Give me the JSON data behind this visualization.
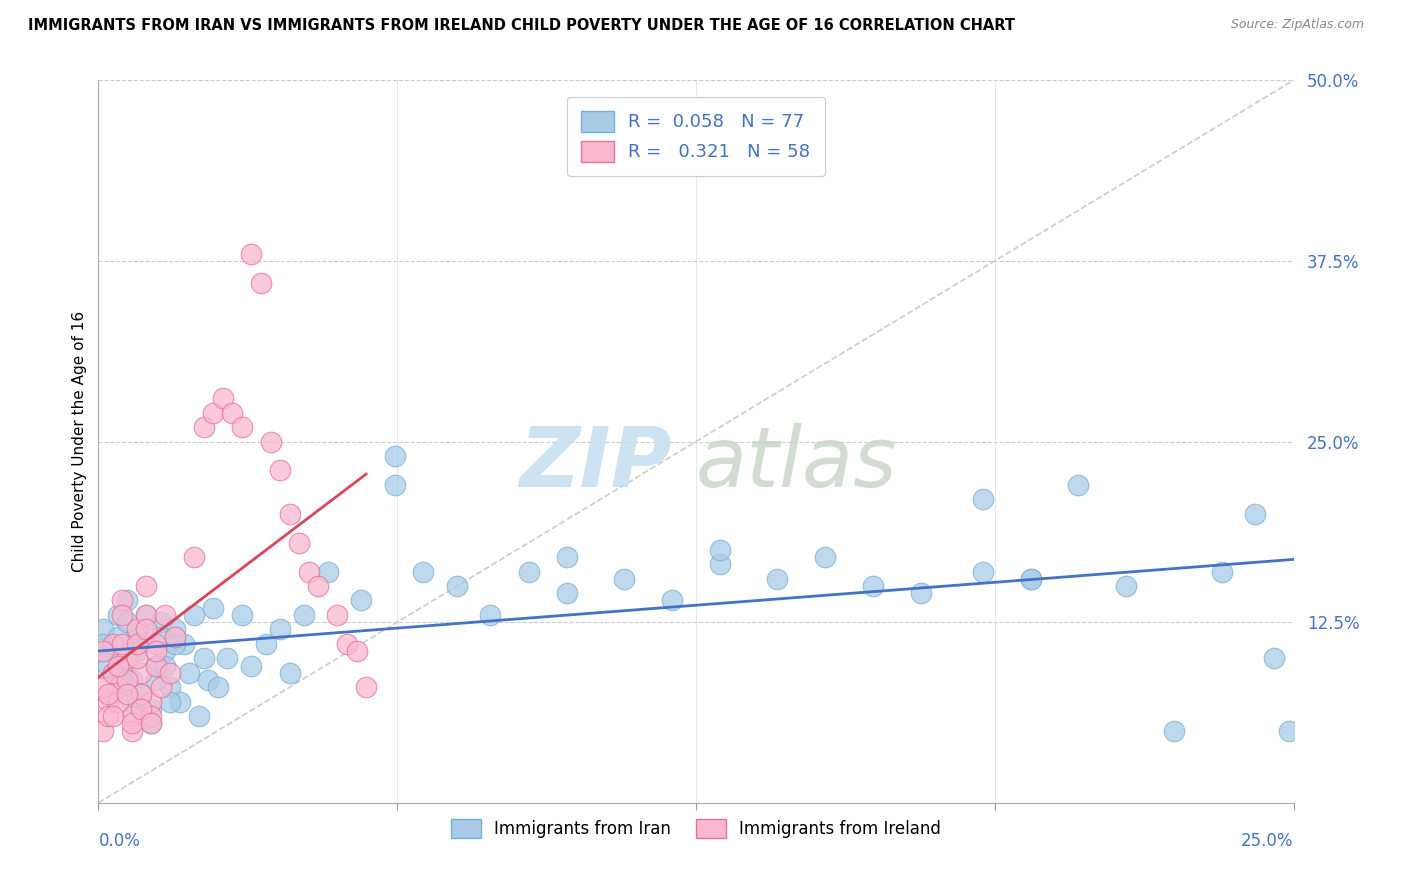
{
  "title": "IMMIGRANTS FROM IRAN VS IMMIGRANTS FROM IRELAND CHILD POVERTY UNDER THE AGE OF 16 CORRELATION CHART",
  "source": "Source: ZipAtlas.com",
  "ylabel": "Child Poverty Under the Age of 16",
  "xlim": [
    0.0,
    0.25
  ],
  "ylim": [
    0.0,
    0.5
  ],
  "iran_color": "#a8cce8",
  "iran_edge": "#7aafd4",
  "ireland_color": "#f9b8d0",
  "ireland_edge": "#e87099",
  "iran_line_color": "#4472c4",
  "ireland_line_color": "#d9465a",
  "ref_line_color": "#cccccc",
  "legend_iran_R": "0.058",
  "legend_iran_N": "77",
  "legend_ireland_R": "0.321",
  "legend_ireland_N": "58",
  "ytick_vals": [
    0.0,
    0.125,
    0.25,
    0.375,
    0.5
  ],
  "ytick_labels": [
    "",
    "12.5%",
    "25.0%",
    "37.5%",
    "50.0%"
  ],
  "iran_pts": [
    [
      0.001,
      0.12
    ],
    [
      0.002,
      0.105
    ],
    [
      0.003,
      0.09
    ],
    [
      0.004,
      0.13
    ],
    [
      0.005,
      0.095
    ],
    [
      0.006,
      0.14
    ],
    [
      0.007,
      0.085
    ],
    [
      0.008,
      0.115
    ],
    [
      0.009,
      0.075
    ],
    [
      0.01,
      0.13
    ],
    [
      0.011,
      0.065
    ],
    [
      0.012,
      0.095
    ],
    [
      0.013,
      0.125
    ],
    [
      0.014,
      0.105
    ],
    [
      0.015,
      0.08
    ],
    [
      0.016,
      0.12
    ],
    [
      0.017,
      0.07
    ],
    [
      0.018,
      0.11
    ],
    [
      0.019,
      0.09
    ],
    [
      0.02,
      0.13
    ],
    [
      0.021,
      0.06
    ],
    [
      0.022,
      0.1
    ],
    [
      0.023,
      0.085
    ],
    [
      0.024,
      0.135
    ],
    [
      0.001,
      0.11
    ],
    [
      0.002,
      0.095
    ],
    [
      0.003,
      0.075
    ],
    [
      0.004,
      0.115
    ],
    [
      0.005,
      0.085
    ],
    [
      0.006,
      0.125
    ],
    [
      0.007,
      0.07
    ],
    [
      0.008,
      0.105
    ],
    [
      0.009,
      0.065
    ],
    [
      0.01,
      0.115
    ],
    [
      0.011,
      0.055
    ],
    [
      0.012,
      0.085
    ],
    [
      0.013,
      0.115
    ],
    [
      0.014,
      0.095
    ],
    [
      0.015,
      0.07
    ],
    [
      0.016,
      0.11
    ],
    [
      0.025,
      0.08
    ],
    [
      0.027,
      0.1
    ],
    [
      0.03,
      0.13
    ],
    [
      0.032,
      0.095
    ],
    [
      0.035,
      0.11
    ],
    [
      0.038,
      0.12
    ],
    [
      0.04,
      0.09
    ],
    [
      0.043,
      0.13
    ],
    [
      0.048,
      0.16
    ],
    [
      0.055,
      0.14
    ],
    [
      0.062,
      0.24
    ],
    [
      0.068,
      0.16
    ],
    [
      0.075,
      0.15
    ],
    [
      0.082,
      0.13
    ],
    [
      0.09,
      0.16
    ],
    [
      0.098,
      0.145
    ],
    [
      0.11,
      0.155
    ],
    [
      0.12,
      0.14
    ],
    [
      0.13,
      0.165
    ],
    [
      0.142,
      0.155
    ],
    [
      0.152,
      0.17
    ],
    [
      0.162,
      0.15
    ],
    [
      0.172,
      0.145
    ],
    [
      0.185,
      0.16
    ],
    [
      0.195,
      0.155
    ],
    [
      0.205,
      0.22
    ],
    [
      0.215,
      0.15
    ],
    [
      0.225,
      0.05
    ],
    [
      0.235,
      0.16
    ],
    [
      0.242,
      0.2
    ],
    [
      0.246,
      0.1
    ],
    [
      0.249,
      0.05
    ],
    [
      0.185,
      0.21
    ],
    [
      0.195,
      0.155
    ],
    [
      0.13,
      0.175
    ],
    [
      0.098,
      0.17
    ],
    [
      0.062,
      0.22
    ]
  ],
  "ireland_pts": [
    [
      0.001,
      0.05
    ],
    [
      0.002,
      0.07
    ],
    [
      0.003,
      0.11
    ],
    [
      0.004,
      0.08
    ],
    [
      0.005,
      0.14
    ],
    [
      0.006,
      0.1
    ],
    [
      0.007,
      0.06
    ],
    [
      0.008,
      0.12
    ],
    [
      0.009,
      0.09
    ],
    [
      0.01,
      0.15
    ],
    [
      0.011,
      0.07
    ],
    [
      0.012,
      0.11
    ],
    [
      0.001,
      0.08
    ],
    [
      0.002,
      0.06
    ],
    [
      0.003,
      0.09
    ],
    [
      0.004,
      0.07
    ],
    [
      0.005,
      0.11
    ],
    [
      0.006,
      0.085
    ],
    [
      0.007,
      0.05
    ],
    [
      0.008,
      0.1
    ],
    [
      0.009,
      0.075
    ],
    [
      0.01,
      0.13
    ],
    [
      0.011,
      0.06
    ],
    [
      0.012,
      0.095
    ],
    [
      0.001,
      0.105
    ],
    [
      0.002,
      0.075
    ],
    [
      0.003,
      0.06
    ],
    [
      0.004,
      0.095
    ],
    [
      0.005,
      0.13
    ],
    [
      0.006,
      0.075
    ],
    [
      0.007,
      0.055
    ],
    [
      0.008,
      0.11
    ],
    [
      0.009,
      0.065
    ],
    [
      0.01,
      0.12
    ],
    [
      0.011,
      0.055
    ],
    [
      0.012,
      0.105
    ],
    [
      0.013,
      0.08
    ],
    [
      0.014,
      0.13
    ],
    [
      0.015,
      0.09
    ],
    [
      0.016,
      0.115
    ],
    [
      0.02,
      0.17
    ],
    [
      0.022,
      0.26
    ],
    [
      0.024,
      0.27
    ],
    [
      0.026,
      0.28
    ],
    [
      0.028,
      0.27
    ],
    [
      0.03,
      0.26
    ],
    [
      0.032,
      0.38
    ],
    [
      0.034,
      0.36
    ],
    [
      0.036,
      0.25
    ],
    [
      0.038,
      0.23
    ],
    [
      0.04,
      0.2
    ],
    [
      0.042,
      0.18
    ],
    [
      0.044,
      0.16
    ],
    [
      0.046,
      0.15
    ],
    [
      0.05,
      0.13
    ],
    [
      0.052,
      0.11
    ],
    [
      0.054,
      0.105
    ],
    [
      0.056,
      0.08
    ]
  ]
}
